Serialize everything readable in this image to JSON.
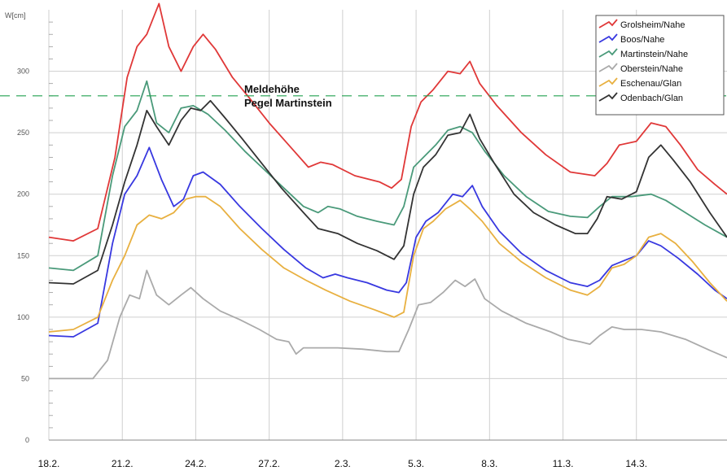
{
  "chart_data": {
    "type": "line",
    "ylabel": "W[cm]",
    "ylim": [
      0,
      350
    ],
    "yticks": [
      0,
      50,
      100,
      150,
      200,
      250,
      300
    ],
    "xlim": [
      0,
      27.7
    ],
    "x_tick_labels": [
      "18.2.",
      "21.2.",
      "24.2.",
      "27.2.",
      "2.3.",
      "5.3.",
      "8.3.",
      "11.3.",
      "14.3."
    ],
    "grid": true,
    "legend_position": "top-right",
    "threshold": {
      "value": 280,
      "color": "#22a050",
      "label_line1": "Meldehöhe",
      "label_line2": "Pegel Martinstein"
    },
    "series": [
      {
        "name": "Grolsheim/Nahe",
        "color": "#e03838",
        "points": [
          [
            0,
            165
          ],
          [
            1,
            162
          ],
          [
            2,
            172
          ],
          [
            2.7,
            230
          ],
          [
            3.2,
            295
          ],
          [
            3.6,
            320
          ],
          [
            4,
            330
          ],
          [
            4.5,
            355
          ],
          [
            4.9,
            320
          ],
          [
            5.4,
            300
          ],
          [
            5.9,
            320
          ],
          [
            6.3,
            330
          ],
          [
            6.8,
            318
          ],
          [
            7.5,
            295
          ],
          [
            8.2,
            278
          ],
          [
            9,
            258
          ],
          [
            9.8,
            240
          ],
          [
            10.6,
            222
          ],
          [
            11.1,
            226
          ],
          [
            11.6,
            224
          ],
          [
            12.5,
            215
          ],
          [
            13.5,
            210
          ],
          [
            14,
            205
          ],
          [
            14.4,
            212
          ],
          [
            14.8,
            255
          ],
          [
            15.2,
            275
          ],
          [
            15.7,
            285
          ],
          [
            16.3,
            300
          ],
          [
            16.8,
            298
          ],
          [
            17.2,
            308
          ],
          [
            17.6,
            290
          ],
          [
            18.3,
            272
          ],
          [
            19.3,
            250
          ],
          [
            20.3,
            232
          ],
          [
            21.3,
            218
          ],
          [
            22.3,
            215
          ],
          [
            22.8,
            225
          ],
          [
            23.3,
            240
          ],
          [
            24,
            243
          ],
          [
            24.6,
            258
          ],
          [
            25.2,
            255
          ],
          [
            25.8,
            240
          ],
          [
            26.5,
            220
          ],
          [
            27.2,
            208
          ],
          [
            27.7,
            200
          ]
        ]
      },
      {
        "name": "Boos/Nahe",
        "color": "#3838e0",
        "points": [
          [
            0,
            85
          ],
          [
            1,
            84
          ],
          [
            2,
            95
          ],
          [
            2.6,
            160
          ],
          [
            3.1,
            200
          ],
          [
            3.6,
            215
          ],
          [
            4.1,
            238
          ],
          [
            4.6,
            212
          ],
          [
            5.1,
            190
          ],
          [
            5.5,
            196
          ],
          [
            5.9,
            215
          ],
          [
            6.3,
            218
          ],
          [
            7,
            208
          ],
          [
            7.8,
            190
          ],
          [
            8.7,
            172
          ],
          [
            9.6,
            155
          ],
          [
            10.5,
            140
          ],
          [
            11.2,
            132
          ],
          [
            11.7,
            135
          ],
          [
            12.2,
            132
          ],
          [
            13,
            128
          ],
          [
            13.8,
            122
          ],
          [
            14.3,
            120
          ],
          [
            14.6,
            128
          ],
          [
            15,
            165
          ],
          [
            15.4,
            178
          ],
          [
            15.9,
            185
          ],
          [
            16.5,
            200
          ],
          [
            16.9,
            198
          ],
          [
            17.3,
            207
          ],
          [
            17.7,
            190
          ],
          [
            18.4,
            170
          ],
          [
            19.3,
            152
          ],
          [
            20.3,
            138
          ],
          [
            21.3,
            128
          ],
          [
            22,
            125
          ],
          [
            22.5,
            130
          ],
          [
            23,
            142
          ],
          [
            23.5,
            146
          ],
          [
            24,
            150
          ],
          [
            24.5,
            162
          ],
          [
            25,
            158
          ],
          [
            25.7,
            148
          ],
          [
            26.5,
            135
          ],
          [
            27.2,
            122
          ],
          [
            27.7,
            115
          ]
        ]
      },
      {
        "name": "Martinstein/Nahe",
        "color": "#4a9a7a",
        "points": [
          [
            0,
            140
          ],
          [
            1,
            138
          ],
          [
            2,
            150
          ],
          [
            2.6,
            215
          ],
          [
            3.1,
            255
          ],
          [
            3.6,
            268
          ],
          [
            4,
            292
          ],
          [
            4.4,
            258
          ],
          [
            4.9,
            250
          ],
          [
            5.4,
            270
          ],
          [
            5.9,
            272
          ],
          [
            6.5,
            265
          ],
          [
            7.2,
            252
          ],
          [
            8,
            235
          ],
          [
            8.8,
            220
          ],
          [
            9.6,
            205
          ],
          [
            10.4,
            190
          ],
          [
            11,
            185
          ],
          [
            11.4,
            190
          ],
          [
            11.9,
            188
          ],
          [
            12.6,
            182
          ],
          [
            13.4,
            178
          ],
          [
            14.1,
            175
          ],
          [
            14.5,
            190
          ],
          [
            14.9,
            222
          ],
          [
            15.3,
            230
          ],
          [
            15.8,
            240
          ],
          [
            16.3,
            252
          ],
          [
            16.8,
            255
          ],
          [
            17.3,
            250
          ],
          [
            17.8,
            235
          ],
          [
            18.6,
            215
          ],
          [
            19.5,
            198
          ],
          [
            20.4,
            186
          ],
          [
            21.3,
            182
          ],
          [
            22,
            181
          ],
          [
            22.5,
            190
          ],
          [
            23,
            198
          ],
          [
            23.8,
            198
          ],
          [
            24.6,
            200
          ],
          [
            25.2,
            195
          ],
          [
            26,
            185
          ],
          [
            26.8,
            175
          ],
          [
            27.7,
            165
          ]
        ]
      },
      {
        "name": "Oberstein/Nahe",
        "color": "#aaaaaa",
        "points": [
          [
            0,
            50
          ],
          [
            1.8,
            50
          ],
          [
            2.4,
            65
          ],
          [
            2.9,
            100
          ],
          [
            3.3,
            118
          ],
          [
            3.7,
            115
          ],
          [
            4,
            138
          ],
          [
            4.4,
            118
          ],
          [
            4.9,
            110
          ],
          [
            5.4,
            118
          ],
          [
            5.8,
            124
          ],
          [
            6.3,
            115
          ],
          [
            7,
            105
          ],
          [
            7.8,
            98
          ],
          [
            8.6,
            90
          ],
          [
            9.3,
            82
          ],
          [
            9.8,
            80
          ],
          [
            10.1,
            70
          ],
          [
            10.4,
            75
          ],
          [
            11,
            75
          ],
          [
            11.8,
            75
          ],
          [
            12.8,
            74
          ],
          [
            13.8,
            72
          ],
          [
            14.3,
            72
          ],
          [
            14.7,
            90
          ],
          [
            15.1,
            110
          ],
          [
            15.6,
            112
          ],
          [
            16.1,
            120
          ],
          [
            16.6,
            130
          ],
          [
            17,
            125
          ],
          [
            17.4,
            131
          ],
          [
            17.8,
            115
          ],
          [
            18.5,
            105
          ],
          [
            19.5,
            95
          ],
          [
            20.5,
            88
          ],
          [
            21.2,
            82
          ],
          [
            21.7,
            80
          ],
          [
            22.1,
            78
          ],
          [
            22.5,
            85
          ],
          [
            23,
            92
          ],
          [
            23.5,
            90
          ],
          [
            24.2,
            90
          ],
          [
            25,
            88
          ],
          [
            26,
            82
          ],
          [
            27,
            73
          ],
          [
            27.7,
            67
          ]
        ]
      },
      {
        "name": "Eschenau/Glan",
        "color": "#e8b040",
        "points": [
          [
            0,
            88
          ],
          [
            1,
            90
          ],
          [
            2,
            100
          ],
          [
            2.6,
            130
          ],
          [
            3.1,
            150
          ],
          [
            3.6,
            175
          ],
          [
            4.1,
            183
          ],
          [
            4.6,
            180
          ],
          [
            5.1,
            185
          ],
          [
            5.6,
            196
          ],
          [
            6,
            198
          ],
          [
            6.4,
            198
          ],
          [
            7,
            190
          ],
          [
            7.8,
            172
          ],
          [
            8.7,
            155
          ],
          [
            9.6,
            140
          ],
          [
            10.5,
            130
          ],
          [
            11.3,
            122
          ],
          [
            12.3,
            113
          ],
          [
            13.3,
            106
          ],
          [
            14.1,
            100
          ],
          [
            14.5,
            104
          ],
          [
            14.9,
            150
          ],
          [
            15.3,
            172
          ],
          [
            15.7,
            178
          ],
          [
            16.2,
            188
          ],
          [
            16.8,
            195
          ],
          [
            17.2,
            188
          ],
          [
            17.7,
            178
          ],
          [
            18.4,
            160
          ],
          [
            19.3,
            145
          ],
          [
            20.3,
            132
          ],
          [
            21.3,
            122
          ],
          [
            22,
            118
          ],
          [
            22.5,
            125
          ],
          [
            23,
            140
          ],
          [
            23.5,
            143
          ],
          [
            24,
            150
          ],
          [
            24.5,
            165
          ],
          [
            25,
            168
          ],
          [
            25.6,
            160
          ],
          [
            26.3,
            145
          ],
          [
            27,
            128
          ],
          [
            27.7,
            113
          ]
        ]
      },
      {
        "name": "Odenbach/Glan",
        "color": "#333333",
        "points": [
          [
            0,
            128
          ],
          [
            1,
            127
          ],
          [
            2,
            138
          ],
          [
            2.6,
            175
          ],
          [
            3.1,
            210
          ],
          [
            3.6,
            240
          ],
          [
            4,
            268
          ],
          [
            4.4,
            255
          ],
          [
            4.9,
            240
          ],
          [
            5.4,
            260
          ],
          [
            5.8,
            270
          ],
          [
            6.2,
            268
          ],
          [
            6.6,
            276
          ],
          [
            7.2,
            262
          ],
          [
            7.9,
            245
          ],
          [
            8.7,
            225
          ],
          [
            9.5,
            205
          ],
          [
            10.4,
            185
          ],
          [
            11,
            172
          ],
          [
            11.8,
            168
          ],
          [
            12.6,
            160
          ],
          [
            13.4,
            154
          ],
          [
            14.1,
            147
          ],
          [
            14.5,
            158
          ],
          [
            14.9,
            200
          ],
          [
            15.3,
            222
          ],
          [
            15.8,
            232
          ],
          [
            16.3,
            248
          ],
          [
            16.8,
            250
          ],
          [
            17.2,
            265
          ],
          [
            17.6,
            245
          ],
          [
            18.2,
            225
          ],
          [
            19,
            200
          ],
          [
            19.8,
            185
          ],
          [
            20.7,
            175
          ],
          [
            21.5,
            168
          ],
          [
            22,
            168
          ],
          [
            22.4,
            180
          ],
          [
            22.8,
            198
          ],
          [
            23.4,
            196
          ],
          [
            24,
            202
          ],
          [
            24.5,
            230
          ],
          [
            25,
            240
          ],
          [
            25.5,
            228
          ],
          [
            26.2,
            210
          ],
          [
            27,
            185
          ],
          [
            27.7,
            165
          ]
        ]
      }
    ]
  }
}
